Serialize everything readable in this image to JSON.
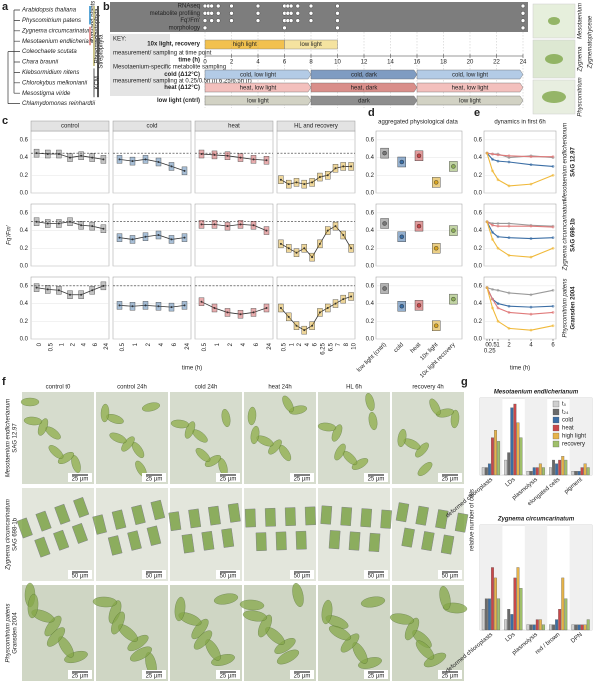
{
  "panel_labels": [
    "a",
    "b",
    "c",
    "d",
    "e",
    "f",
    "g"
  ],
  "tree": {
    "taxa": [
      {
        "name": "Arabidopsis thaliana",
        "color": "#222222"
      },
      {
        "name": "Physcomitrium patens",
        "color": "#1a8f9a"
      },
      {
        "name": "Zygnema circumcarinatum",
        "color": "#d0313a"
      },
      {
        "name": "Mesotaenium endlicherianum",
        "color": "#d0313a"
      },
      {
        "name": "Coleochaete scutata",
        "color": "#222222"
      },
      {
        "name": "Chara braunii",
        "color": "#222222"
      },
      {
        "name": "Klebsormidium nitens",
        "color": "#222222"
      },
      {
        "name": "Chlorokybus melkonianii",
        "color": "#222222"
      },
      {
        "name": "Mesostigma viride",
        "color": "#222222"
      },
      {
        "name": "Chlamydomonas reinhardtii",
        "color": "#888888"
      }
    ],
    "clades": [
      {
        "label": "land plants",
        "color": "#5aa6d6"
      },
      {
        "label": "Zyg.",
        "color": "#e79a9a"
      },
      {
        "label": "Phragmoplastophyta",
        "color": "#c9c28a"
      },
      {
        "label": "Streptophyta",
        "color": "#555555"
      },
      {
        "label": "KCM",
        "color": "#aaaaaa"
      }
    ]
  },
  "timeline": {
    "sampling": [
      {
        "label": "RNAseq",
        "times": [
          0,
          0.25,
          0.5,
          1,
          2,
          4,
          6,
          6.25,
          6.5,
          7,
          8,
          10,
          24
        ]
      },
      {
        "label": "metabolite profiling",
        "times": [
          0,
          0.25,
          0.5,
          1,
          2,
          4,
          6,
          6.25,
          6.5,
          7,
          8,
          10,
          24
        ]
      },
      {
        "label": "Fq'/Fm'",
        "times": [
          0,
          0.5,
          1,
          2,
          4,
          6,
          6.25,
          6.5,
          7,
          8,
          10,
          24
        ]
      },
      {
        "label": "morphology",
        "times": [
          0,
          6,
          10,
          24
        ]
      }
    ],
    "key": [
      "KEY:",
      "measurement/ sampling at time point",
      "Mesotaenium-specific metabolite sampling",
      "measurement/ sampling at 0.25/0.5h (l) 6.25/6.5h (r)"
    ],
    "light_label": "10x light, recovery",
    "light_segments": [
      {
        "label": "high light",
        "start": 0,
        "end": 6,
        "color": "#f2c14e"
      },
      {
        "label": "low light",
        "start": 6,
        "end": 10,
        "color": "#f5e3a0"
      }
    ],
    "time_label": "time (h)",
    "xlim": [
      0,
      24
    ],
    "xticks": [
      0,
      2,
      4,
      6,
      8,
      10,
      12,
      14,
      16,
      18,
      20,
      22,
      24
    ],
    "conditions": [
      {
        "label": "cold (Δ12°C)",
        "segments": [
          {
            "label": "cold, low light",
            "start": 0,
            "end": 8,
            "color": "#b3cbe6"
          },
          {
            "label": "cold, dark",
            "start": 8,
            "end": 16,
            "color": "#7f9cc2"
          },
          {
            "label": "cold, low light",
            "start": 16,
            "end": 24,
            "color": "#b3cbe6"
          }
        ]
      },
      {
        "label": "heat (Δ12°C)",
        "segments": [
          {
            "label": "heat, low light",
            "start": 0,
            "end": 8,
            "color": "#f3c0bd"
          },
          {
            "label": "heat, dark",
            "start": 8,
            "end": 16,
            "color": "#d98e8a"
          },
          {
            "label": "heat, low light",
            "start": 16,
            "end": 24,
            "color": "#f3c0bd"
          }
        ]
      },
      {
        "label": "low light (cntrl)",
        "segments": [
          {
            "label": "low light",
            "start": 0,
            "end": 8,
            "color": "#d2d2c4"
          },
          {
            "label": "dark",
            "start": 8,
            "end": 16,
            "color": "#8e8e8e"
          },
          {
            "label": "low light",
            "start": 16,
            "end": 24,
            "color": "#d2d2c4"
          }
        ]
      }
    ],
    "photo_labels": [
      "Mesotaenium",
      "Zygnema",
      "Physcomitrium",
      "Zygnematophyceae"
    ]
  },
  "chart_data": [
    {
      "type": "line",
      "ylabel": "Fq'/Fm'",
      "xlabel": "time (h)",
      "ylim": [
        0,
        0.7
      ],
      "yticks": [
        {
          "value": 0,
          "label": "0.0"
        },
        0.2,
        0.4,
        0.6
      ],
      "grid": true,
      "panels": [
        {
          "title": "control",
          "color": "#777777",
          "categories": [
            "0",
            "0.5",
            "1",
            "2",
            "4",
            "6",
            "24"
          ]
        },
        {
          "title": "cold",
          "color": "#3b6ea5",
          "categories": [
            "0.5",
            "1",
            "2",
            "4",
            "6",
            "24"
          ]
        },
        {
          "title": "heat",
          "color": "#c9484a",
          "categories": [
            "0.5",
            "1",
            "2",
            "4",
            "6",
            "24"
          ]
        },
        {
          "title": "HL and recovery",
          "color": "#d9a520",
          "categories": [
            "0.5",
            "1",
            "2",
            "4",
            "6",
            "6.25",
            "6.5",
            "7",
            "8",
            "10"
          ]
        }
      ],
      "rows": [
        {
          "reference": 0.45,
          "values": [
            [
              0.45,
              0.44,
              0.44,
              0.4,
              0.42,
              0.4,
              0.38
            ],
            [
              0.38,
              0.36,
              0.38,
              0.35,
              0.3,
              0.25
            ],
            [
              0.44,
              0.43,
              0.42,
              0.4,
              0.38,
              0.37
            ],
            [
              0.15,
              0.1,
              0.12,
              0.1,
              0.12,
              0.18,
              0.2,
              0.28,
              0.3,
              0.3
            ]
          ]
        },
        {
          "reference": 0.5,
          "values": [
            [
              0.5,
              0.48,
              0.48,
              0.5,
              0.46,
              0.45,
              0.42
            ],
            [
              0.32,
              0.3,
              0.33,
              0.35,
              0.3,
              0.32
            ],
            [
              0.47,
              0.47,
              0.45,
              0.47,
              0.46,
              0.4
            ],
            [
              0.25,
              0.2,
              0.15,
              0.2,
              0.1,
              0.25,
              0.4,
              0.45,
              0.35,
              0.2
            ]
          ]
        },
        {
          "reference": 0.6,
          "values": [
            [
              0.58,
              0.56,
              0.55,
              0.5,
              0.5,
              0.55,
              0.6
            ],
            [
              0.38,
              0.37,
              0.38,
              0.37,
              0.36,
              0.38
            ],
            [
              0.42,
              0.35,
              0.3,
              0.28,
              0.3,
              0.35
            ],
            [
              0.35,
              0.25,
              0.15,
              0.1,
              0.15,
              0.3,
              0.35,
              0.4,
              0.45,
              0.48
            ]
          ]
        }
      ]
    },
    {
      "type": "dot",
      "title": "aggregated physiological data",
      "categories": [
        "low light (cntrl)",
        "cold",
        "heat",
        "10x light",
        "10x light recovery"
      ],
      "colors": [
        "#777777",
        "#3b6ea5",
        "#c9484a",
        "#d9a520",
        "#8fb05a"
      ],
      "ylim": [
        0,
        0.7
      ],
      "yticks": [
        {
          "value": 0,
          "label": "0.0"
        },
        0.2,
        0.4,
        0.6
      ],
      "rows": [
        {
          "values": [
            0.45,
            0.35,
            0.42,
            0.12,
            0.3
          ]
        },
        {
          "values": [
            0.48,
            0.33,
            0.45,
            0.2,
            0.4
          ]
        },
        {
          "values": [
            0.57,
            0.37,
            0.38,
            0.15,
            0.45
          ]
        }
      ]
    },
    {
      "type": "line",
      "title": "dynamics in first 6h",
      "xlabel": "time (h)",
      "x": [
        0,
        0.5,
        1,
        2,
        4,
        6
      ],
      "xlim": [
        0,
        6
      ],
      "xticks": [
        0,
        0.25,
        0.5,
        1,
        2,
        4,
        6
      ],
      "ylim": [
        0,
        0.7
      ],
      "yticks": [
        {
          "value": 0,
          "label": "0.0"
        },
        0.2,
        0.4,
        0.6
      ],
      "rows": [
        {
          "label": "Mesotaenium endlicherianum",
          "strain": "SAG 12.97",
          "series": [
            {
              "color": "#9a9a9a",
              "values": [
                0.45,
                0.44,
                0.44,
                0.4,
                0.42,
                0.4
              ]
            },
            {
              "color": "#3b6ea5",
              "values": [
                0.45,
                0.38,
                0.36,
                0.35,
                0.32,
                0.3
              ]
            },
            {
              "color": "#e07a7a",
              "values": [
                0.45,
                0.44,
                0.43,
                0.42,
                0.41,
                0.41
              ]
            },
            {
              "color": "#f0b93a",
              "values": [
                0.45,
                0.25,
                0.15,
                0.08,
                0.1,
                0.2
              ]
            }
          ]
        },
        {
          "label": "Zygnema circumcarinatum",
          "strain": "SAG 698-1b",
          "series": [
            {
              "color": "#9a9a9a",
              "values": [
                0.5,
                0.48,
                0.48,
                0.48,
                0.46,
                0.45
              ]
            },
            {
              "color": "#3b6ea5",
              "values": [
                0.5,
                0.38,
                0.33,
                0.32,
                0.31,
                0.32
              ]
            },
            {
              "color": "#e07a7a",
              "values": [
                0.5,
                0.46,
                0.45,
                0.45,
                0.45,
                0.44
              ]
            },
            {
              "color": "#f0b93a",
              "values": [
                0.5,
                0.3,
                0.2,
                0.12,
                0.1,
                0.2
              ]
            }
          ]
        },
        {
          "label": "Physcomitrium patens",
          "strain": "Gransden 2004",
          "series": [
            {
              "color": "#9a9a9a",
              "values": [
                0.58,
                0.56,
                0.55,
                0.52,
                0.5,
                0.55
              ]
            },
            {
              "color": "#3b6ea5",
              "values": [
                0.58,
                0.45,
                0.4,
                0.37,
                0.36,
                0.37
              ]
            },
            {
              "color": "#e07a7a",
              "values": [
                0.58,
                0.45,
                0.35,
                0.3,
                0.28,
                0.3
              ]
            },
            {
              "color": "#f0b93a",
              "values": [
                0.58,
                0.35,
                0.2,
                0.12,
                0.1,
                0.15
              ]
            }
          ]
        }
      ]
    },
    {
      "type": "bar",
      "ylabel": "relative number of cells",
      "series": [
        {
          "name": "t₀",
          "color": "#cfcfcf"
        },
        {
          "name": "t₂₄",
          "color": "#6a6a6a"
        },
        {
          "name": "cold",
          "color": "#3b6ea5"
        },
        {
          "name": "heat",
          "color": "#c9484a"
        },
        {
          "name": "high light",
          "color": "#e6b34a"
        },
        {
          "name": "recovery",
          "color": "#9fbf6a"
        }
      ],
      "groups": [
        {
          "title": "Mesotaenium endlicherianum",
          "categories": [
            "deformed chloroplasts",
            "LDs",
            "plasmolysis",
            "elongated cells",
            "pigment"
          ],
          "values": [
            [
              0.1,
              0.1,
              0.15,
              0.5,
              0.6,
              0.45
            ],
            [
              0.2,
              0.3,
              0.9,
              0.95,
              0.7,
              0.5
            ],
            [
              0.05,
              0.05,
              0.1,
              0.1,
              0.15,
              0.1
            ],
            [
              0.1,
              0.2,
              0.15,
              0.2,
              0.25,
              0.2
            ],
            [
              0.05,
              0.05,
              0.05,
              0.1,
              0.15,
              0.1
            ]
          ]
        },
        {
          "title": "Zygnema circumcarinatum",
          "categories": [
            "deformed chloroplasts",
            "LDs",
            "plasmolysis",
            "red / brown",
            "DPN"
          ],
          "values": [
            [
              0.2,
              0.3,
              0.3,
              0.6,
              0.5,
              0.3
            ],
            [
              0.1,
              0.2,
              0.15,
              0.5,
              0.6,
              0.4
            ],
            [
              0.05,
              0.05,
              0.05,
              0.1,
              0.1,
              0.05
            ],
            [
              0.05,
              0.05,
              0.1,
              0.2,
              0.5,
              0.3
            ],
            [
              0.05,
              0.05,
              0.05,
              0.05,
              0.05,
              0.1
            ]
          ]
        }
      ]
    }
  ],
  "micrographs": {
    "columns": [
      "control t0",
      "control 24h",
      "cold 24h",
      "heat 24h",
      "HL 6h",
      "recovery 4h"
    ],
    "rows": [
      {
        "label": "Mesotaenium endlicherianum",
        "strain": "SAG 12.97",
        "scale_bar": "25 µm"
      },
      {
        "label": "Zygnema circumcarinatum",
        "strain": "SAG 698-1b",
        "scale_bar": "50 µm"
      },
      {
        "label": "Physcomitrium patens",
        "strain": "Gransden 2004",
        "scale_bar": "25 µm"
      }
    ]
  }
}
